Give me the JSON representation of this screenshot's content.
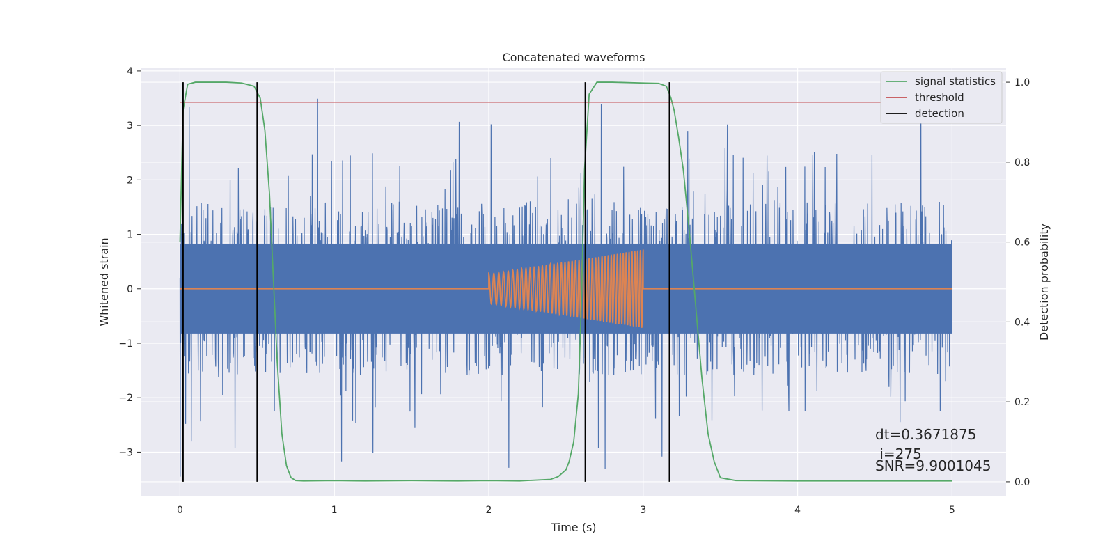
{
  "chart_data": {
    "type": "line",
    "title": "Concatenated waveforms",
    "xlabel": "Time (s)",
    "ylabel_left": "Whitened strain",
    "ylabel_right": "Detection probability",
    "xlim": [
      -0.25,
      5.35
    ],
    "ylim_left": [
      -3.8,
      4.05
    ],
    "ylim_right": [
      -0.035,
      1.035
    ],
    "x_ticks": [
      0,
      1,
      2,
      3,
      4,
      5
    ],
    "x_tick_labels": [
      "0",
      "1",
      "2",
      "3",
      "4",
      "5"
    ],
    "y_left_ticks": [
      -3,
      -2,
      -1,
      0,
      1,
      2,
      3,
      4
    ],
    "y_left_tick_labels": [
      "−3",
      "−2",
      "−1",
      "0",
      "1",
      "2",
      "3",
      "4"
    ],
    "y_right_ticks": [
      0.0,
      0.2,
      0.4,
      0.6,
      0.8,
      1.0
    ],
    "y_right_tick_labels": [
      "0.0",
      "0.2",
      "0.4",
      "0.6",
      "0.8",
      "1.0"
    ],
    "grid": true,
    "legend_position": "top-right",
    "legend": [
      {
        "label": "signal statistics",
        "color": "#55a868"
      },
      {
        "label": "threshold",
        "color": "#c44e52"
      },
      {
        "label": "detection",
        "color": "#000000"
      }
    ],
    "noise": {
      "name": "whitened strain",
      "color": "#4c72b0",
      "x_range": [
        0,
        5
      ],
      "core_amplitude": 0.65,
      "max_positive": 3.7,
      "max_negative": -3.45,
      "spike_count": 3000
    },
    "injection": {
      "name": "injected waveform",
      "color": "#dd8452",
      "t_start": 2.0,
      "t_end": 3.0,
      "amplitude_start": 0.27,
      "amplitude_end": 0.72,
      "cycles": 43
    },
    "signal_statistics": {
      "color": "#55a868",
      "x": [
        0.0,
        0.02,
        0.05,
        0.1,
        0.2,
        0.3,
        0.4,
        0.48,
        0.52,
        0.55,
        0.58,
        0.6,
        0.63,
        0.66,
        0.69,
        0.72,
        0.75,
        0.8,
        1.0,
        1.2,
        1.5,
        1.8,
        2.0,
        2.2,
        2.4,
        2.45,
        2.5,
        2.52,
        2.55,
        2.58,
        2.6,
        2.62,
        2.65,
        2.7,
        2.8,
        3.0,
        3.1,
        3.15,
        3.18,
        3.2,
        3.23,
        3.26,
        3.3,
        3.34,
        3.38,
        3.42,
        3.46,
        3.5,
        3.6,
        4.0,
        4.5,
        5.0
      ],
      "y": [
        0.6,
        0.93,
        0.995,
        1.0,
        1.0,
        1.0,
        0.998,
        0.99,
        0.96,
        0.88,
        0.72,
        0.55,
        0.3,
        0.12,
        0.04,
        0.01,
        0.003,
        0.002,
        0.003,
        0.002,
        0.003,
        0.002,
        0.003,
        0.002,
        0.006,
        0.013,
        0.03,
        0.05,
        0.1,
        0.22,
        0.45,
        0.78,
        0.97,
        1.0,
        1.0,
        0.998,
        0.997,
        0.99,
        0.96,
        0.93,
        0.86,
        0.78,
        0.62,
        0.44,
        0.26,
        0.12,
        0.05,
        0.01,
        0.003,
        0.002,
        0.002,
        0.002
      ]
    },
    "threshold": {
      "color": "#c44e52",
      "x": [
        0,
        5
      ],
      "value": 0.95
    },
    "detections": {
      "color": "#000000",
      "x": [
        0.02,
        0.5,
        2.625,
        3.17
      ],
      "y_range": [
        0.0,
        1.0
      ]
    },
    "annotation_lines": [
      "dt=0.3671875",
      " i=275",
      "SNR=9.9001045"
    ]
  }
}
